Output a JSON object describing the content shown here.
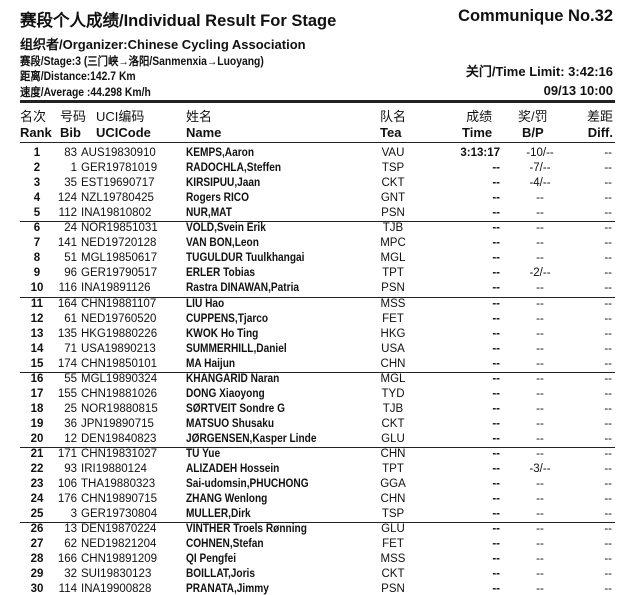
{
  "header": {
    "title": "赛段个人成绩/Individual Result For Stage",
    "communique": "Communique No.32",
    "organizer": "组织者/Organizer:Chinese Cycling Association",
    "stage": "赛段/Stage:3 (三门峡→洛阳/Sanmenxia→Luoyang)",
    "distance": "距离/Distance:142.7 Km",
    "average": "速度/Average :44.298 Km/h",
    "time_limit": "关门/Time Limit: 3:42:16",
    "datetime": "09/13 10:00"
  },
  "columns": [
    {
      "cn": "名次",
      "en": "Rank"
    },
    {
      "cn": "号码",
      "en": "Bib"
    },
    {
      "cn": "UCI编码",
      "en": "UCICode"
    },
    {
      "cn": "姓名",
      "en": "Name"
    },
    {
      "cn": "队名",
      "en": "Tea"
    },
    {
      "cn": "成绩",
      "en": "Time"
    },
    {
      "cn": "奖/罚",
      "en": "B/P"
    },
    {
      "cn": "差距",
      "en": "Diff."
    }
  ],
  "rows": [
    [
      "1",
      "83",
      "AUS19830910",
      "KEMPS,Aaron",
      "VAU",
      "3:13:17",
      "-10/--",
      "--"
    ],
    [
      "2",
      "1",
      "GER19781019",
      "RADOCHLA,Steffen",
      "TSP",
      "--",
      "-7/--",
      "--"
    ],
    [
      "3",
      "35",
      "EST19690717",
      "KIRSIPUU,Jaan",
      "CKT",
      "--",
      "-4/--",
      "--"
    ],
    [
      "4",
      "124",
      "NZL19780425",
      "Rogers RICO",
      "GNT",
      "--",
      "--",
      "--"
    ],
    [
      "5",
      "112",
      "INA19810802",
      "NUR,MAT",
      "PSN",
      "--",
      "--",
      "--"
    ],
    [
      "6",
      "24",
      "NOR19851031",
      "VOLD,Svein Erik",
      "TJB",
      "--",
      "--",
      "--"
    ],
    [
      "7",
      "141",
      "NED19720128",
      "VAN BON,Leon",
      "MPC",
      "--",
      "--",
      "--"
    ],
    [
      "8",
      "51",
      "MGL19850617",
      "TUGULDUR Tuulkhangai",
      "MGL",
      "--",
      "--",
      "--"
    ],
    [
      "9",
      "96",
      "GER19790517",
      "ERLER Tobias",
      "TPT",
      "--",
      "-2/--",
      "--"
    ],
    [
      "10",
      "116",
      "INA19891126",
      "Rastra DINAWAN,Patria",
      "PSN",
      "--",
      "--",
      "--"
    ],
    [
      "11",
      "164",
      "CHN19881107",
      "LIU Hao",
      "MSS",
      "--",
      "--",
      "--"
    ],
    [
      "12",
      "61",
      "NED19760520",
      "CUPPENS,Tjarco",
      "FET",
      "--",
      "--",
      "--"
    ],
    [
      "13",
      "135",
      "HKG19880226",
      "KWOK Ho Ting",
      "HKG",
      "--",
      "--",
      "--"
    ],
    [
      "14",
      "71",
      "USA19890213",
      "SUMMERHILL,Daniel",
      "USA",
      "--",
      "--",
      "--"
    ],
    [
      "15",
      "174",
      "CHN19850101",
      "MA Haijun",
      "CHN",
      "--",
      "--",
      "--"
    ],
    [
      "16",
      "55",
      "MGL19890324",
      "KHANGARID Naran",
      "MGL",
      "--",
      "--",
      "--"
    ],
    [
      "17",
      "155",
      "CHN19881026",
      "DONG Xiaoyong",
      "TYD",
      "--",
      "--",
      "--"
    ],
    [
      "18",
      "25",
      "NOR19880815",
      "SØRTVEIT Sondre G",
      "TJB",
      "--",
      "--",
      "--"
    ],
    [
      "19",
      "36",
      "JPN19890715",
      "MATSUO Shusaku",
      "CKT",
      "--",
      "--",
      "--"
    ],
    [
      "20",
      "12",
      "DEN19840823",
      "JØRGENSEN,Kasper Linde",
      "GLU",
      "--",
      "--",
      "--"
    ],
    [
      "21",
      "171",
      "CHN19831027",
      "TU Yue",
      "CHN",
      "--",
      "--",
      "--"
    ],
    [
      "22",
      "93",
      "IRI19880124",
      "ALIZADEH Hossein",
      "TPT",
      "--",
      "-3/--",
      "--"
    ],
    [
      "23",
      "106",
      "THA19880323",
      "Sai-udomsin,PHUCHONG",
      "GGA",
      "--",
      "--",
      "--"
    ],
    [
      "24",
      "176",
      "CHN19890715",
      "ZHANG Wenlong",
      "CHN",
      "--",
      "--",
      "--"
    ],
    [
      "25",
      "3",
      "GER19730804",
      "MULLER,Dirk",
      "TSP",
      "--",
      "--",
      "--"
    ],
    [
      "26",
      "13",
      "DEN19870224",
      "VINTHER Troels Rønning",
      "GLU",
      "--",
      "--",
      "--"
    ],
    [
      "27",
      "62",
      "NED19821204",
      "COHNEN,Stefan",
      "FET",
      "--",
      "--",
      "--"
    ],
    [
      "28",
      "166",
      "CHN19891209",
      "QI Pengfei",
      "MSS",
      "--",
      "--",
      "--"
    ],
    [
      "29",
      "32",
      "SUI19830123",
      "BOILLAT,Joris",
      "CKT",
      "--",
      "--",
      "--"
    ],
    [
      "30",
      "114",
      "INA19900828",
      "PRANATA,Jimmy",
      "PSN",
      "--",
      "--",
      "--"
    ]
  ]
}
